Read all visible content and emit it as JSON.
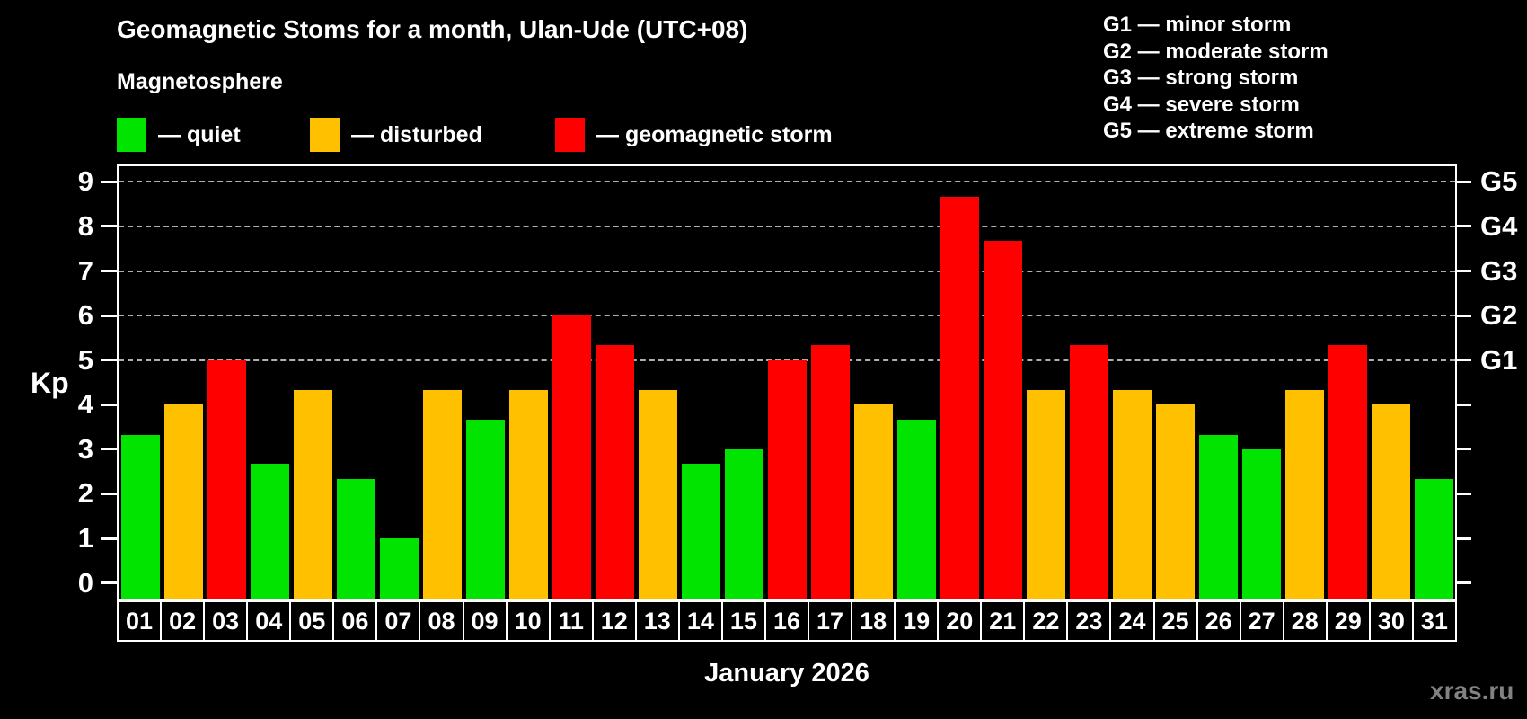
{
  "title": "Geomagnetic Stoms for a month, Ulan-Ude (UTC+08)",
  "subtitle": "Magnetosphere",
  "legend": {
    "items": [
      {
        "key": "quiet",
        "label": "— quiet",
        "color": "#00e400"
      },
      {
        "key": "disturbed",
        "label": "— disturbed",
        "color": "#ffc000"
      },
      {
        "key": "storm",
        "label": "— geomagnetic storm",
        "color": "#ff0000"
      }
    ]
  },
  "g_legend": {
    "items": [
      "G1 — minor storm",
      "G2 — moderate storm",
      "G3 — strong storm",
      "G4 — severe storm",
      "G5 — extreme storm"
    ]
  },
  "watermark": "xras.ru",
  "chart_data": {
    "type": "bar",
    "title": "Geomagnetic Stoms for a month, Ulan-Ude (UTC+08)",
    "xlabel": "January 2026",
    "ylabel": "Kp",
    "ylim": [
      -0.35,
      9.35
    ],
    "yticks": [
      0,
      1,
      2,
      3,
      4,
      5,
      6,
      7,
      8,
      9
    ],
    "grid": "horizontal dashed lines at storm levels G1-G5",
    "legend_position": "top-left",
    "categories": [
      "01",
      "02",
      "03",
      "04",
      "05",
      "06",
      "07",
      "08",
      "09",
      "10",
      "11",
      "12",
      "13",
      "14",
      "15",
      "16",
      "17",
      "18",
      "19",
      "20",
      "21",
      "22",
      "23",
      "24",
      "25",
      "26",
      "27",
      "28",
      "29",
      "30",
      "31"
    ],
    "values": [
      3.33,
      4.0,
      5.0,
      2.67,
      4.33,
      2.33,
      1.0,
      4.33,
      3.67,
      4.33,
      6.0,
      5.33,
      4.33,
      2.67,
      3.0,
      5.0,
      5.33,
      4.0,
      3.67,
      8.67,
      7.67,
      4.33,
      5.33,
      4.33,
      4.0,
      3.33,
      3.0,
      4.33,
      5.33,
      4.0,
      2.33
    ],
    "statuses": [
      "quiet",
      "disturbed",
      "storm",
      "quiet",
      "disturbed",
      "quiet",
      "quiet",
      "disturbed",
      "quiet",
      "disturbed",
      "storm",
      "storm",
      "disturbed",
      "quiet",
      "quiet",
      "storm",
      "storm",
      "disturbed",
      "quiet",
      "storm",
      "storm",
      "disturbed",
      "storm",
      "disturbed",
      "disturbed",
      "quiet",
      "quiet",
      "disturbed",
      "storm",
      "disturbed",
      "quiet"
    ],
    "status_colors": {
      "quiet": "#00e400",
      "disturbed": "#ffc000",
      "storm": "#ff0000"
    },
    "right_axis": [
      {
        "kp": 5,
        "label": "G1"
      },
      {
        "kp": 6,
        "label": "G2"
      },
      {
        "kp": 7,
        "label": "G3"
      },
      {
        "kp": 8,
        "label": "G4"
      },
      {
        "kp": 9,
        "label": "G5"
      }
    ]
  }
}
